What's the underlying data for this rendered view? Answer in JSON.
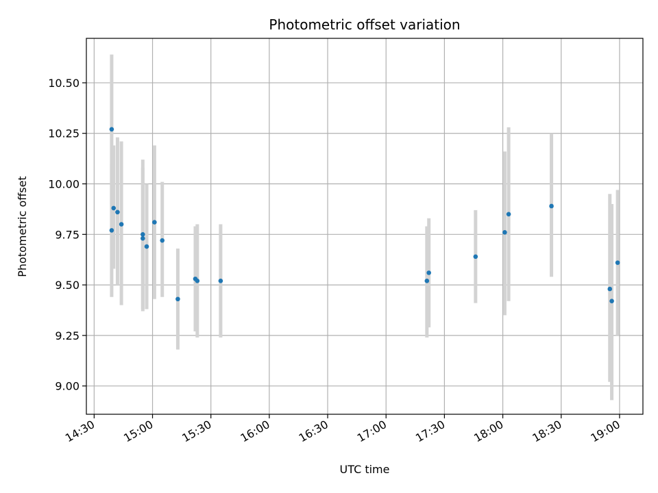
{
  "chart_data": {
    "type": "scatter",
    "title": "Photometric offset variation",
    "xlabel": "UTC time",
    "ylabel": "Photometric offset",
    "grid": true,
    "x_ticks": [
      "14:30",
      "15:00",
      "15:30",
      "16:00",
      "16:30",
      "17:00",
      "17:30",
      "18:00",
      "18:30",
      "19:00"
    ],
    "y_ticks": [
      "9.00",
      "9.25",
      "9.50",
      "9.75",
      "10.00",
      "10.25",
      "10.50"
    ],
    "xlim": [
      "14:26",
      "19:12"
    ],
    "ylim": [
      8.86,
      10.72
    ],
    "series": [
      {
        "points": [
          {
            "x": "14:39",
            "y": 10.27,
            "err_low": 9.9,
            "err_high": 10.64
          },
          {
            "x": "14:39",
            "y": 9.77,
            "err_low": 9.44,
            "err_high": 10.1
          },
          {
            "x": "14:40",
            "y": 9.88,
            "err_low": 9.58,
            "err_high": 10.19
          },
          {
            "x": "14:42",
            "y": 9.86,
            "err_low": 9.5,
            "err_high": 10.23
          },
          {
            "x": "14:44",
            "y": 9.8,
            "err_low": 9.4,
            "err_high": 10.21
          },
          {
            "x": "14:55",
            "y": 9.75,
            "err_low": 9.37,
            "err_high": 10.12
          },
          {
            "x": "14:55",
            "y": 9.73,
            "err_low": 9.38,
            "err_high": 10.08
          },
          {
            "x": "14:57",
            "y": 9.69,
            "err_low": 9.38,
            "err_high": 10.0
          },
          {
            "x": "15:01",
            "y": 9.81,
            "err_low": 9.43,
            "err_high": 10.19
          },
          {
            "x": "15:05",
            "y": 9.72,
            "err_low": 9.44,
            "err_high": 10.01
          },
          {
            "x": "15:13",
            "y": 9.43,
            "err_low": 9.18,
            "err_high": 9.68
          },
          {
            "x": "15:22",
            "y": 9.53,
            "err_low": 9.27,
            "err_high": 9.79
          },
          {
            "x": "15:23",
            "y": 9.52,
            "err_low": 9.24,
            "err_high": 9.8
          },
          {
            "x": "15:35",
            "y": 9.52,
            "err_low": 9.24,
            "err_high": 9.8
          },
          {
            "x": "17:21",
            "y": 9.52,
            "err_low": 9.24,
            "err_high": 9.79
          },
          {
            "x": "17:22",
            "y": 9.56,
            "err_low": 9.29,
            "err_high": 9.83
          },
          {
            "x": "17:46",
            "y": 9.64,
            "err_low": 9.41,
            "err_high": 9.87
          },
          {
            "x": "18:01",
            "y": 9.76,
            "err_low": 9.35,
            "err_high": 10.16
          },
          {
            "x": "18:03",
            "y": 9.85,
            "err_low": 9.42,
            "err_high": 10.28
          },
          {
            "x": "18:25",
            "y": 9.89,
            "err_low": 9.54,
            "err_high": 10.25
          },
          {
            "x": "18:55",
            "y": 9.48,
            "err_low": 9.02,
            "err_high": 9.95
          },
          {
            "x": "18:56",
            "y": 9.42,
            "err_low": 8.93,
            "err_high": 9.9
          },
          {
            "x": "18:59",
            "y": 9.61,
            "err_low": 9.25,
            "err_high": 9.97
          }
        ]
      }
    ],
    "colors": {
      "point": "#1f77b4",
      "errorbar": "#d3d3d3",
      "grid": "#b0b0b0",
      "axis": "#000000"
    }
  }
}
